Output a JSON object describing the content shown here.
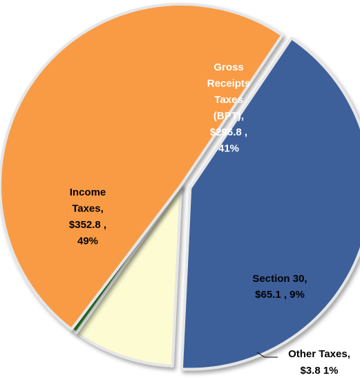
{
  "chart_data": {
    "type": "pie",
    "title": "",
    "currency_unit": "$",
    "slices": [
      {
        "name": "Gross Receipts Taxes (BPT)",
        "value": 296.8,
        "percent": "41%",
        "label_lines": [
          "Gross",
          "Receipts",
          "Taxes",
          "(BPT),",
          "$296.8 ,",
          "41%"
        ],
        "color": "#3c619b",
        "label_color": "#ffffff"
      },
      {
        "name": "Section 30",
        "value": 65.1,
        "percent": "9%",
        "label_lines": [
          "Section 30,",
          "$65.1 , 9%"
        ],
        "color": "#fcfbd2",
        "label_color": "#000000"
      },
      {
        "name": "Other Taxes",
        "value": 3.8,
        "percent": "1%",
        "label_lines": [
          "Other Taxes,",
          "$3.8   1%"
        ],
        "color": "#2e8b2e",
        "label_color": "#000000"
      },
      {
        "name": "Income Taxes",
        "value": 352.8,
        "percent": "49%",
        "label_lines": [
          "Income",
          "Taxes,",
          "$352.8 ,",
          "49%"
        ],
        "color": "#f99b45",
        "label_color": "#000000"
      }
    ],
    "start_angle_deg": 34,
    "direction": "clockwise",
    "exploded_slice": "Gross Receipts Taxes (BPT)",
    "legend": "none"
  }
}
